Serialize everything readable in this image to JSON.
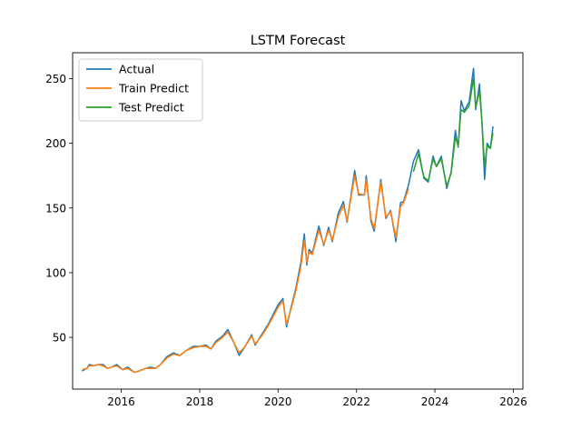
{
  "chart_data": {
    "type": "line",
    "title": "LSTM Forecast",
    "xlabel": "",
    "ylabel": "",
    "x_type": "date",
    "xlim": [
      "2014-10-05",
      "2026-03-31"
    ],
    "ylim": [
      10,
      270
    ],
    "x_ticks": [
      "2016-01-01",
      "2018-01-01",
      "2020-01-01",
      "2022-01-01",
      "2024-01-01",
      "2026-01-01"
    ],
    "x_tick_labels": [
      "2016",
      "2018",
      "2020",
      "2022",
      "2024",
      "2026"
    ],
    "y_ticks": [
      50,
      100,
      150,
      200,
      250
    ],
    "y_tick_labels": [
      "50",
      "100",
      "150",
      "200",
      "250"
    ],
    "grid": false,
    "legend_position": "upper-left",
    "series": [
      {
        "name": "Actual",
        "color": "#1f77b4",
        "points": [
          [
            "2015-01-01",
            24
          ],
          [
            "2015-02-15",
            26
          ],
          [
            "2015-03-10",
            29
          ],
          [
            "2015-04-20",
            28
          ],
          [
            "2015-06-01",
            29
          ],
          [
            "2015-07-15",
            29
          ],
          [
            "2015-08-25",
            26
          ],
          [
            "2015-10-01",
            27
          ],
          [
            "2015-11-20",
            29
          ],
          [
            "2016-01-15",
            25
          ],
          [
            "2016-03-01",
            27
          ],
          [
            "2016-05-01",
            23
          ],
          [
            "2016-06-15",
            24
          ],
          [
            "2016-08-15",
            26
          ],
          [
            "2016-10-01",
            27
          ],
          [
            "2016-11-15",
            26
          ],
          [
            "2017-01-01",
            29
          ],
          [
            "2017-03-01",
            35
          ],
          [
            "2017-05-01",
            38
          ],
          [
            "2017-07-01",
            36
          ],
          [
            "2017-09-01",
            40
          ],
          [
            "2017-11-01",
            43
          ],
          [
            "2018-01-01",
            43
          ],
          [
            "2018-03-01",
            44
          ],
          [
            "2018-04-15",
            41
          ],
          [
            "2018-06-01",
            47
          ],
          [
            "2018-08-01",
            51
          ],
          [
            "2018-09-20",
            56
          ],
          [
            "2018-11-15",
            46
          ],
          [
            "2019-01-03",
            36
          ],
          [
            "2019-03-01",
            43
          ],
          [
            "2019-05-01",
            52
          ],
          [
            "2019-06-01",
            44
          ],
          [
            "2019-08-01",
            52
          ],
          [
            "2019-10-01",
            60
          ],
          [
            "2019-12-31",
            75
          ],
          [
            "2020-02-15",
            80
          ],
          [
            "2020-03-20",
            58
          ],
          [
            "2020-05-01",
            73
          ],
          [
            "2020-06-15",
            88
          ],
          [
            "2020-08-01",
            108
          ],
          [
            "2020-09-01",
            130
          ],
          [
            "2020-09-25",
            106
          ],
          [
            "2020-10-15",
            118
          ],
          [
            "2020-11-15",
            115
          ],
          [
            "2021-01-15",
            136
          ],
          [
            "2021-03-01",
            121
          ],
          [
            "2021-04-15",
            135
          ],
          [
            "2021-05-20",
            124
          ],
          [
            "2021-07-15",
            146
          ],
          [
            "2021-09-01",
            155
          ],
          [
            "2021-10-05",
            139
          ],
          [
            "2021-12-15",
            179
          ],
          [
            "2022-01-20",
            160
          ],
          [
            "2022-03-15",
            160
          ],
          [
            "2022-04-01",
            175
          ],
          [
            "2022-05-15",
            140
          ],
          [
            "2022-06-15",
            132
          ],
          [
            "2022-08-15",
            172
          ],
          [
            "2022-10-01",
            142
          ],
          [
            "2022-11-15",
            148
          ],
          [
            "2023-01-03",
            124
          ],
          [
            "2023-02-15",
            154
          ],
          [
            "2023-03-15",
            155
          ],
          [
            "2023-05-01",
            168
          ],
          [
            "2023-06-15",
            186
          ],
          [
            "2023-08-01",
            195
          ],
          [
            "2023-09-20",
            173
          ],
          [
            "2023-11-01",
            170
          ],
          [
            "2023-12-15",
            190
          ],
          [
            "2024-01-15",
            182
          ],
          [
            "2024-03-01",
            190
          ],
          [
            "2024-04-20",
            165
          ],
          [
            "2024-06-01",
            178
          ],
          [
            "2024-07-10",
            210
          ],
          [
            "2024-08-05",
            197
          ],
          [
            "2024-09-01",
            233
          ],
          [
            "2024-10-01",
            225
          ],
          [
            "2024-11-15",
            232
          ],
          [
            "2024-12-26",
            258
          ],
          [
            "2025-01-15",
            226
          ],
          [
            "2025-02-20",
            246
          ],
          [
            "2025-03-15",
            215
          ],
          [
            "2025-04-08",
            172
          ],
          [
            "2025-05-01",
            200
          ],
          [
            "2025-06-01",
            196
          ],
          [
            "2025-06-25",
            213
          ]
        ]
      },
      {
        "name": "Train Predict",
        "color": "#ff7f0e",
        "points": [
          [
            "2015-01-01",
            25
          ],
          [
            "2015-02-15",
            26
          ],
          [
            "2015-03-10",
            28
          ],
          [
            "2015-04-20",
            28
          ],
          [
            "2015-06-01",
            29
          ],
          [
            "2015-07-15",
            28
          ],
          [
            "2015-08-25",
            26
          ],
          [
            "2015-10-01",
            27
          ],
          [
            "2015-11-20",
            28
          ],
          [
            "2016-01-15",
            25
          ],
          [
            "2016-03-01",
            26
          ],
          [
            "2016-05-01",
            23
          ],
          [
            "2016-06-15",
            24
          ],
          [
            "2016-08-15",
            26
          ],
          [
            "2016-10-01",
            26
          ],
          [
            "2016-11-15",
            26
          ],
          [
            "2017-01-01",
            29
          ],
          [
            "2017-03-01",
            34
          ],
          [
            "2017-05-01",
            37
          ],
          [
            "2017-07-01",
            36
          ],
          [
            "2017-09-01",
            40
          ],
          [
            "2017-11-01",
            42
          ],
          [
            "2018-01-01",
            43
          ],
          [
            "2018-03-01",
            43
          ],
          [
            "2018-04-15",
            41
          ],
          [
            "2018-06-01",
            46
          ],
          [
            "2018-08-01",
            50
          ],
          [
            "2018-09-20",
            54
          ],
          [
            "2018-11-15",
            46
          ],
          [
            "2019-01-03",
            38
          ],
          [
            "2019-03-01",
            43
          ],
          [
            "2019-05-01",
            51
          ],
          [
            "2019-06-01",
            45
          ],
          [
            "2019-08-01",
            51
          ],
          [
            "2019-10-01",
            59
          ],
          [
            "2019-12-31",
            73
          ],
          [
            "2020-02-15",
            78
          ],
          [
            "2020-03-20",
            60
          ],
          [
            "2020-05-01",
            72
          ],
          [
            "2020-06-15",
            86
          ],
          [
            "2020-08-01",
            105
          ],
          [
            "2020-09-01",
            125
          ],
          [
            "2020-09-25",
            108
          ],
          [
            "2020-10-15",
            116
          ],
          [
            "2020-11-15",
            114
          ],
          [
            "2021-01-15",
            133
          ],
          [
            "2021-03-01",
            122
          ],
          [
            "2021-04-15",
            133
          ],
          [
            "2021-05-20",
            125
          ],
          [
            "2021-07-15",
            143
          ],
          [
            "2021-09-01",
            152
          ],
          [
            "2021-10-05",
            140
          ],
          [
            "2021-12-15",
            175
          ],
          [
            "2022-01-20",
            161
          ],
          [
            "2022-03-15",
            160
          ],
          [
            "2022-04-01",
            172
          ],
          [
            "2022-05-15",
            142
          ],
          [
            "2022-06-15",
            134
          ],
          [
            "2022-08-15",
            170
          ],
          [
            "2022-10-01",
            143
          ],
          [
            "2022-11-15",
            147
          ],
          [
            "2023-01-03",
            127
          ],
          [
            "2023-02-15",
            151
          ],
          [
            "2023-03-15",
            154
          ],
          [
            "2023-05-01",
            165
          ]
        ]
      },
      {
        "name": "Test Predict",
        "color": "#2ca02c",
        "points": [
          [
            "2023-06-15",
            178
          ],
          [
            "2023-08-01",
            192
          ],
          [
            "2023-09-20",
            174
          ],
          [
            "2023-11-01",
            171
          ],
          [
            "2023-12-15",
            188
          ],
          [
            "2024-01-15",
            182
          ],
          [
            "2024-03-01",
            188
          ],
          [
            "2024-04-20",
            167
          ],
          [
            "2024-06-01",
            177
          ],
          [
            "2024-07-10",
            205
          ],
          [
            "2024-08-05",
            198
          ],
          [
            "2024-09-01",
            226
          ],
          [
            "2024-10-01",
            224
          ],
          [
            "2024-11-15",
            229
          ],
          [
            "2024-12-26",
            250
          ],
          [
            "2025-01-15",
            228
          ],
          [
            "2025-02-20",
            240
          ],
          [
            "2025-03-15",
            216
          ],
          [
            "2025-04-08",
            182
          ],
          [
            "2025-05-01",
            198
          ],
          [
            "2025-06-01",
            196
          ],
          [
            "2025-06-25",
            208
          ]
        ]
      }
    ]
  }
}
